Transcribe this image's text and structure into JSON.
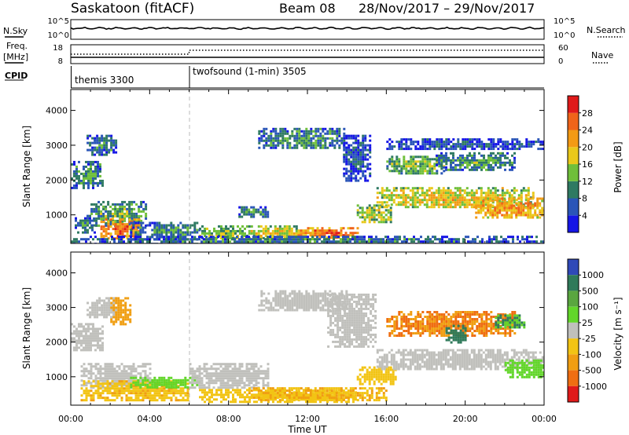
{
  "header": {
    "station": "Saskatoon (fitACF)",
    "beam": "Beam 08",
    "dates": "28/Nov/2017 – 29/Nov/2017"
  },
  "nsky_panel": {
    "left_label": "N.Sky",
    "right_label": "N.Search",
    "left_ticks": [
      "10^5",
      "10^0"
    ],
    "right_ticks": [
      "10^5",
      "10^0"
    ]
  },
  "freq_panel": {
    "left_label_1": "Freq.",
    "left_label_2": "[MHz]",
    "left_ticks": [
      "18",
      "8"
    ],
    "right_label": "Nave",
    "right_ticks": [
      "60",
      "0"
    ]
  },
  "cpid_panel": {
    "label": "CPID",
    "modes": [
      {
        "name": "themis 3300",
        "start_hour": 0
      },
      {
        "name": "twofsound (1-min) 3505",
        "start_hour": 6
      }
    ]
  },
  "x_axis": {
    "label": "Time UT",
    "ticks": [
      "00:00",
      "04:00",
      "08:00",
      "12:00",
      "16:00",
      "20:00",
      "00:00"
    ],
    "range_hours": [
      0,
      24
    ]
  },
  "power_colorbar": {
    "label": "Power [dB]",
    "ticks": [
      "4",
      "8",
      "12",
      "16",
      "20",
      "24",
      "28"
    ],
    "colors": [
      "#1515e6",
      "#2a55b8",
      "#2f7a62",
      "#6fbf3a",
      "#e9c81a",
      "#f39a14",
      "#f0641a",
      "#e01a1a"
    ]
  },
  "velocity_colorbar": {
    "label": "Velocity [m s⁻¹]",
    "ticks": [
      "1000",
      "500",
      "100",
      "25",
      "-25",
      "-100",
      "-500",
      "-1000"
    ],
    "colors": [
      "#2f49b8",
      "#2f7a5a",
      "#5aa640",
      "#62d62a",
      "#c0c0bc",
      "#f2c414",
      "#f09e12",
      "#ef6e12",
      "#e01a1a"
    ]
  },
  "chart_data": [
    {
      "type": "heatmap",
      "title": "",
      "xlabel": "",
      "ylabel": "Slant Range [km]",
      "xlim": [
        0,
        24
      ],
      "ylim": [
        180,
        4600
      ],
      "yticks": [
        1000,
        2000,
        3000,
        4000
      ],
      "value_label": "Power [dB]",
      "value_range": [
        0,
        32
      ],
      "regions": [
        {
          "t": [
            0.8,
            2.3
          ],
          "r": [
            2700,
            3300
          ],
          "v": 10
        },
        {
          "t": [
            0.0,
            1.6
          ],
          "r": [
            1750,
            2550
          ],
          "v": 12
        },
        {
          "t": [
            1.0,
            3.8
          ],
          "r": [
            700,
            1400
          ],
          "v": 14
        },
        {
          "t": [
            1.5,
            3.5
          ],
          "r": [
            300,
            900
          ],
          "v": 26
        },
        {
          "t": [
            0.2,
            1.2
          ],
          "r": [
            500,
            1000
          ],
          "v": 10
        },
        {
          "t": [
            3.0,
            6.5
          ],
          "r": [
            300,
            800
          ],
          "v": 12
        },
        {
          "t": [
            6.5,
            9.0
          ],
          "r": [
            300,
            700
          ],
          "v": 16
        },
        {
          "t": [
            8.5,
            10.0
          ],
          "r": [
            950,
            1250
          ],
          "v": 12
        },
        {
          "t": [
            9.0,
            11.5
          ],
          "r": [
            350,
            700
          ],
          "v": 20
        },
        {
          "t": [
            11.5,
            14.5
          ],
          "r": [
            350,
            650
          ],
          "v": 26
        },
        {
          "t": [
            9.5,
            14.0
          ],
          "r": [
            2900,
            3500
          ],
          "v": 12
        },
        {
          "t": [
            13.8,
            15.2
          ],
          "r": [
            2000,
            3300
          ],
          "v": 8
        },
        {
          "t": [
            14.5,
            16.2
          ],
          "r": [
            800,
            1300
          ],
          "v": 18
        },
        {
          "t": [
            15.5,
            23.5
          ],
          "r": [
            1200,
            1800
          ],
          "v": 20
        },
        {
          "t": [
            16.0,
            19.0
          ],
          "r": [
            2200,
            2700
          ],
          "v": 16
        },
        {
          "t": [
            18.5,
            22.5
          ],
          "r": [
            2300,
            2800
          ],
          "v": 12
        },
        {
          "t": [
            20.5,
            24.0
          ],
          "r": [
            900,
            1500
          ],
          "v": 24
        },
        {
          "t": [
            16.0,
            24.0
          ],
          "r": [
            2900,
            3200
          ],
          "v": 8
        },
        {
          "t": [
            0.0,
            24.0
          ],
          "r": [
            180,
            400
          ],
          "v": 10
        }
      ]
    },
    {
      "type": "heatmap",
      "title": "",
      "xlabel": "Time UT",
      "ylabel": "Slant Range [km]",
      "xlim": [
        0,
        24
      ],
      "ylim": [
        180,
        4600
      ],
      "yticks": [
        1000,
        2000,
        3000,
        4000
      ],
      "value_label": "Velocity [m s⁻¹]",
      "value_range": [
        -1000,
        1000
      ],
      "regions": [
        {
          "t": [
            0.8,
            2.3
          ],
          "r": [
            2700,
            3300
          ],
          "v": 0,
          "g": 1
        },
        {
          "t": [
            0.0,
            1.6
          ],
          "r": [
            1750,
            2550
          ],
          "v": 0,
          "g": 1
        },
        {
          "t": [
            2.0,
            3.0
          ],
          "r": [
            2500,
            3300
          ],
          "v": -300
        },
        {
          "t": [
            0.5,
            4.0
          ],
          "r": [
            700,
            1400
          ],
          "v": 0,
          "g": 1
        },
        {
          "t": [
            0.5,
            6.0
          ],
          "r": [
            300,
            900
          ],
          "v": -80
        },
        {
          "t": [
            3.0,
            6.5
          ],
          "r": [
            700,
            1000
          ],
          "v": 60
        },
        {
          "t": [
            6.0,
            10.0
          ],
          "r": [
            700,
            1400
          ],
          "v": 0,
          "g": 1
        },
        {
          "t": [
            6.5,
            14.5
          ],
          "r": [
            300,
            650
          ],
          "v": -70
        },
        {
          "t": [
            9.5,
            14.0
          ],
          "r": [
            2900,
            3500
          ],
          "v": 0,
          "g": 1
        },
        {
          "t": [
            13.0,
            15.5
          ],
          "r": [
            1900,
            3400
          ],
          "v": 0,
          "g": 1
        },
        {
          "t": [
            14.5,
            16.5
          ],
          "r": [
            800,
            1300
          ],
          "v": -60
        },
        {
          "t": [
            15.5,
            24.0
          ],
          "r": [
            1200,
            1800
          ],
          "v": 0,
          "g": 1
        },
        {
          "t": [
            16.0,
            22.5
          ],
          "r": [
            2200,
            2900
          ],
          "v": -500
        },
        {
          "t": [
            19.0,
            20.0
          ],
          "r": [
            2000,
            2500
          ],
          "v": 300
        },
        {
          "t": [
            21.5,
            23.0
          ],
          "r": [
            2400,
            2800
          ],
          "v": 100
        },
        {
          "t": [
            22.0,
            24.0
          ],
          "r": [
            1000,
            1500
          ],
          "v": 60
        },
        {
          "t": [
            9.0,
            16.0
          ],
          "r": [
            300,
            700
          ],
          "v": -90
        }
      ]
    }
  ]
}
